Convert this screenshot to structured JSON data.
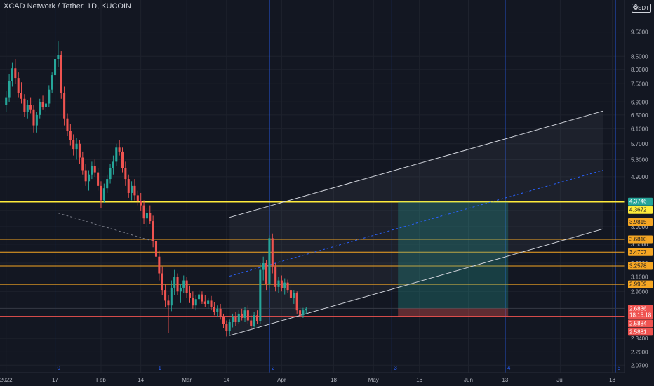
{
  "header": {
    "symbol_title": "XCAD Network / Tether, 1D, KUCOIN",
    "currency_unit": "USDT",
    "settings_glyph": "⚙"
  },
  "chart_data": {
    "type": "candlestick",
    "title": "XCAD Network / Tether, 1D, KUCOIN",
    "xlabel": "",
    "ylabel": "",
    "y_scale": "log",
    "ylim": [
      2.0,
      11.0
    ],
    "xlim": [
      "2021-12-30",
      "2022-07-22"
    ],
    "grid": true,
    "colors": {
      "up": "#26a69a",
      "down": "#ef5350",
      "background": "#131722",
      "horizontal_level": "#f5a623",
      "highlight_level": "#ffeb3b",
      "cycle_line": "#2962ff",
      "channel": "#d1d4dc"
    },
    "x_tick_labels": [
      {
        "date": "2022-01-01",
        "label": "2022"
      },
      {
        "date": "2022-01-17",
        "label": "17"
      },
      {
        "date": "2022-02-01",
        "label": "Feb"
      },
      {
        "date": "2022-02-14",
        "label": "14"
      },
      {
        "date": "2022-03-01",
        "label": "Mar"
      },
      {
        "date": "2022-03-14",
        "label": "14"
      },
      {
        "date": "2022-04-01",
        "label": "Apr"
      },
      {
        "date": "2022-04-18",
        "label": "18"
      },
      {
        "date": "2022-05-01",
        "label": "May"
      },
      {
        "date": "2022-05-16",
        "label": "16"
      },
      {
        "date": "2022-06-01",
        "label": "Jun"
      },
      {
        "date": "2022-06-13",
        "label": "13"
      },
      {
        "date": "2022-07-01",
        "label": "Jul"
      },
      {
        "date": "2022-07-18",
        "label": "18"
      }
    ],
    "y_tick_labels": [
      "9.5000",
      "8.5000",
      "8.0000",
      "7.5000",
      "6.9000",
      "6.5000",
      "6.1000",
      "5.7000",
      "5.3000",
      "4.9000",
      "4.2000",
      "3.9000",
      "3.6000",
      "3.3000",
      "3.1000",
      "2.9000",
      "2.3400",
      "2.2000",
      "2.0700"
    ],
    "price_levels": [
      {
        "label": "4.3746",
        "value": 4.3746,
        "bg": "#26a69a",
        "line": false
      },
      {
        "label": "4.3672",
        "value": 4.3672,
        "bg": "#ffeb3b",
        "line": true,
        "color": "#ffeb3b"
      },
      {
        "label": "3.9815",
        "value": 3.9815,
        "bg": "#f5a623",
        "line": true,
        "color": "#f5a623"
      },
      {
        "label": "3.6810",
        "value": 3.681,
        "bg": "#f5a623",
        "line": true,
        "color": "#f5a623"
      },
      {
        "label": "3.4707",
        "value": 3.4707,
        "bg": "#f5a623",
        "line": true,
        "color": "#f5a623"
      },
      {
        "label": "3.2578",
        "value": 3.2578,
        "bg": "#f5a623",
        "line": true,
        "color": "#f5a623"
      },
      {
        "label": "2.9959",
        "value": 2.9959,
        "bg": "#f5a623",
        "line": true,
        "color": "#f5a623"
      },
      {
        "label": "2.6836",
        "value": 2.6836,
        "bg": "#ef5350",
        "line": true,
        "color": "#363a45",
        "multiline": [
          "2.6836",
          "18:15:18"
        ]
      },
      {
        "label": "2.5884",
        "value": 2.5884,
        "bg": "#ef5350",
        "line": true,
        "color": "#ef5350"
      },
      {
        "label": "2.5881",
        "value": 2.5881,
        "bg": "#ef5350",
        "line": false
      }
    ],
    "cycle_lines": [
      {
        "date": "2022-01-17",
        "label": "0"
      },
      {
        "date": "2022-02-19",
        "label": "1"
      },
      {
        "date": "2022-03-28",
        "label": "2"
      },
      {
        "date": "2022-05-07",
        "label": "3"
      },
      {
        "date": "2022-06-13",
        "label": "4"
      },
      {
        "date": "2022-07-19",
        "label": "5"
      }
    ],
    "channel": {
      "upper": [
        [
          "2022-03-15",
          4.07
        ],
        [
          "2022-07-15",
          6.62
        ]
      ],
      "lower": [
        [
          "2022-03-15",
          2.37
        ],
        [
          "2022-07-15",
          3.86
        ]
      ],
      "mid": [
        [
          "2022-03-15",
          3.11
        ],
        [
          "2022-07-15",
          5.05
        ]
      ]
    },
    "trendline_dashed": [
      [
        "2022-01-18",
        4.15
      ],
      [
        "2022-02-20",
        3.62
      ]
    ],
    "position": {
      "start": "2022-05-09",
      "end": "2022-06-14",
      "target": 4.3672,
      "entry": 2.6836,
      "stop": 2.5884
    },
    "ohlc": [
      {
        "t": "2022-01-01",
        "o": 6.8,
        "h": 7.25,
        "l": 6.6,
        "c": 7.05
      },
      {
        "t": "2022-01-02",
        "o": 7.05,
        "h": 7.85,
        "l": 6.9,
        "c": 7.6
      },
      {
        "t": "2022-01-03",
        "o": 7.6,
        "h": 8.25,
        "l": 7.4,
        "c": 8.05
      },
      {
        "t": "2022-01-04",
        "o": 8.05,
        "h": 8.4,
        "l": 7.5,
        "c": 7.7
      },
      {
        "t": "2022-01-05",
        "o": 7.7,
        "h": 7.9,
        "l": 7.05,
        "c": 7.2
      },
      {
        "t": "2022-01-06",
        "o": 7.2,
        "h": 7.55,
        "l": 6.85,
        "c": 7.0
      },
      {
        "t": "2022-01-07",
        "o": 7.0,
        "h": 7.15,
        "l": 6.45,
        "c": 6.6
      },
      {
        "t": "2022-01-08",
        "o": 6.6,
        "h": 6.95,
        "l": 6.4,
        "c": 6.8
      },
      {
        "t": "2022-01-09",
        "o": 6.8,
        "h": 7.05,
        "l": 6.55,
        "c": 6.65
      },
      {
        "t": "2022-01-10",
        "o": 6.65,
        "h": 6.8,
        "l": 6.0,
        "c": 6.2
      },
      {
        "t": "2022-01-11",
        "o": 6.2,
        "h": 6.6,
        "l": 6.0,
        "c": 6.5
      },
      {
        "t": "2022-01-12",
        "o": 6.5,
        "h": 7.0,
        "l": 6.4,
        "c": 6.9
      },
      {
        "t": "2022-01-13",
        "o": 6.9,
        "h": 7.1,
        "l": 6.65,
        "c": 6.75
      },
      {
        "t": "2022-01-14",
        "o": 6.75,
        "h": 6.95,
        "l": 6.6,
        "c": 6.85
      },
      {
        "t": "2022-01-15",
        "o": 6.85,
        "h": 7.45,
        "l": 6.75,
        "c": 7.3
      },
      {
        "t": "2022-01-16",
        "o": 7.3,
        "h": 7.9,
        "l": 7.2,
        "c": 7.8
      },
      {
        "t": "2022-01-17",
        "o": 7.8,
        "h": 8.65,
        "l": 7.6,
        "c": 8.4
      },
      {
        "t": "2022-01-18",
        "o": 8.4,
        "h": 9.1,
        "l": 8.1,
        "c": 8.55
      },
      {
        "t": "2022-01-19",
        "o": 8.55,
        "h": 8.7,
        "l": 7.0,
        "c": 7.2
      },
      {
        "t": "2022-01-20",
        "o": 7.2,
        "h": 7.4,
        "l": 6.2,
        "c": 6.4
      },
      {
        "t": "2022-01-21",
        "o": 6.4,
        "h": 6.55,
        "l": 5.9,
        "c": 6.05
      },
      {
        "t": "2022-01-22",
        "o": 6.05,
        "h": 6.25,
        "l": 5.65,
        "c": 5.8
      },
      {
        "t": "2022-01-23",
        "o": 5.8,
        "h": 5.95,
        "l": 5.4,
        "c": 5.55
      },
      {
        "t": "2022-01-24",
        "o": 5.55,
        "h": 5.85,
        "l": 5.3,
        "c": 5.7
      },
      {
        "t": "2022-01-25",
        "o": 5.7,
        "h": 5.8,
        "l": 5.2,
        "c": 5.35
      },
      {
        "t": "2022-01-26",
        "o": 5.35,
        "h": 5.5,
        "l": 4.95,
        "c": 5.05
      },
      {
        "t": "2022-01-27",
        "o": 5.05,
        "h": 5.2,
        "l": 4.7,
        "c": 4.8
      },
      {
        "t": "2022-01-28",
        "o": 4.8,
        "h": 5.05,
        "l": 4.6,
        "c": 4.95
      },
      {
        "t": "2022-01-29",
        "o": 4.95,
        "h": 5.25,
        "l": 4.85,
        "c": 5.15
      },
      {
        "t": "2022-01-30",
        "o": 5.15,
        "h": 5.3,
        "l": 4.9,
        "c": 5.0
      },
      {
        "t": "2022-01-31",
        "o": 5.0,
        "h": 5.1,
        "l": 4.6,
        "c": 4.7
      },
      {
        "t": "2022-02-01",
        "o": 4.7,
        "h": 4.8,
        "l": 4.25,
        "c": 4.4
      },
      {
        "t": "2022-02-02",
        "o": 4.4,
        "h": 4.75,
        "l": 4.35,
        "c": 4.65
      },
      {
        "t": "2022-02-03",
        "o": 4.65,
        "h": 4.95,
        "l": 4.55,
        "c": 4.85
      },
      {
        "t": "2022-02-04",
        "o": 4.85,
        "h": 5.2,
        "l": 4.75,
        "c": 5.1
      },
      {
        "t": "2022-02-05",
        "o": 5.1,
        "h": 5.4,
        "l": 4.95,
        "c": 5.25
      },
      {
        "t": "2022-02-06",
        "o": 5.25,
        "h": 5.7,
        "l": 5.15,
        "c": 5.6
      },
      {
        "t": "2022-02-07",
        "o": 5.6,
        "h": 5.8,
        "l": 5.4,
        "c": 5.5
      },
      {
        "t": "2022-02-08",
        "o": 5.5,
        "h": 5.6,
        "l": 5.0,
        "c": 5.1
      },
      {
        "t": "2022-02-09",
        "o": 5.1,
        "h": 5.25,
        "l": 4.7,
        "c": 4.85
      },
      {
        "t": "2022-02-10",
        "o": 4.85,
        "h": 4.95,
        "l": 4.45,
        "c": 4.55
      },
      {
        "t": "2022-02-11",
        "o": 4.55,
        "h": 4.8,
        "l": 4.4,
        "c": 4.7
      },
      {
        "t": "2022-02-12",
        "o": 4.7,
        "h": 4.85,
        "l": 4.4,
        "c": 4.5
      },
      {
        "t": "2022-02-13",
        "o": 4.5,
        "h": 4.6,
        "l": 4.3,
        "c": 4.38
      },
      {
        "t": "2022-02-14",
        "o": 4.38,
        "h": 4.55,
        "l": 4.2,
        "c": 4.3
      },
      {
        "t": "2022-02-15",
        "o": 4.3,
        "h": 4.4,
        "l": 3.95,
        "c": 4.05
      },
      {
        "t": "2022-02-16",
        "o": 4.05,
        "h": 4.25,
        "l": 3.9,
        "c": 4.15
      },
      {
        "t": "2022-02-17",
        "o": 4.15,
        "h": 4.3,
        "l": 3.95,
        "c": 4.0
      },
      {
        "t": "2022-02-18",
        "o": 4.0,
        "h": 4.1,
        "l": 3.55,
        "c": 3.65
      },
      {
        "t": "2022-02-19",
        "o": 3.65,
        "h": 3.75,
        "l": 3.3,
        "c": 3.4
      },
      {
        "t": "2022-02-20",
        "o": 3.4,
        "h": 3.5,
        "l": 3.05,
        "c": 3.15
      },
      {
        "t": "2022-02-21",
        "o": 3.15,
        "h": 3.25,
        "l": 2.85,
        "c": 2.92
      },
      {
        "t": "2022-02-22",
        "o": 2.92,
        "h": 3.0,
        "l": 2.7,
        "c": 2.78
      },
      {
        "t": "2022-02-23",
        "o": 2.78,
        "h": 2.85,
        "l": 2.4,
        "c": 2.72
      },
      {
        "t": "2022-02-24",
        "o": 2.72,
        "h": 3.05,
        "l": 2.65,
        "c": 2.95
      },
      {
        "t": "2022-02-25",
        "o": 2.95,
        "h": 3.2,
        "l": 2.85,
        "c": 3.1
      },
      {
        "t": "2022-02-26",
        "o": 3.1,
        "h": 3.15,
        "l": 2.85,
        "c": 2.9
      },
      {
        "t": "2022-02-27",
        "o": 2.9,
        "h": 3.0,
        "l": 2.75,
        "c": 2.95
      },
      {
        "t": "2022-02-28",
        "o": 2.95,
        "h": 3.12,
        "l": 2.88,
        "c": 3.05
      },
      {
        "t": "2022-03-01",
        "o": 3.05,
        "h": 3.1,
        "l": 2.82,
        "c": 2.88
      },
      {
        "t": "2022-03-02",
        "o": 2.88,
        "h": 2.98,
        "l": 2.75,
        "c": 2.82
      },
      {
        "t": "2022-03-03",
        "o": 2.82,
        "h": 2.9,
        "l": 2.68,
        "c": 2.72
      },
      {
        "t": "2022-03-04",
        "o": 2.72,
        "h": 2.85,
        "l": 2.66,
        "c": 2.8
      },
      {
        "t": "2022-03-05",
        "o": 2.8,
        "h": 2.92,
        "l": 2.74,
        "c": 2.86
      },
      {
        "t": "2022-03-06",
        "o": 2.86,
        "h": 2.9,
        "l": 2.74,
        "c": 2.77
      },
      {
        "t": "2022-03-07",
        "o": 2.77,
        "h": 2.85,
        "l": 2.7,
        "c": 2.74
      },
      {
        "t": "2022-03-08",
        "o": 2.74,
        "h": 2.82,
        "l": 2.68,
        "c": 2.78
      },
      {
        "t": "2022-03-09",
        "o": 2.78,
        "h": 2.84,
        "l": 2.66,
        "c": 2.7
      },
      {
        "t": "2022-03-10",
        "o": 2.7,
        "h": 2.76,
        "l": 2.6,
        "c": 2.64
      },
      {
        "t": "2022-03-11",
        "o": 2.64,
        "h": 2.72,
        "l": 2.58,
        "c": 2.68
      },
      {
        "t": "2022-03-12",
        "o": 2.68,
        "h": 2.74,
        "l": 2.55,
        "c": 2.58
      },
      {
        "t": "2022-03-13",
        "o": 2.58,
        "h": 2.62,
        "l": 2.45,
        "c": 2.5
      },
      {
        "t": "2022-03-14",
        "o": 2.5,
        "h": 2.54,
        "l": 2.36,
        "c": 2.42
      },
      {
        "t": "2022-03-15",
        "o": 2.42,
        "h": 2.55,
        "l": 2.38,
        "c": 2.52
      },
      {
        "t": "2022-03-16",
        "o": 2.52,
        "h": 2.62,
        "l": 2.46,
        "c": 2.58
      },
      {
        "t": "2022-03-17",
        "o": 2.58,
        "h": 2.64,
        "l": 2.48,
        "c": 2.52
      },
      {
        "t": "2022-03-18",
        "o": 2.52,
        "h": 2.66,
        "l": 2.5,
        "c": 2.62
      },
      {
        "t": "2022-03-19",
        "o": 2.62,
        "h": 2.68,
        "l": 2.54,
        "c": 2.57
      },
      {
        "t": "2022-03-20",
        "o": 2.57,
        "h": 2.7,
        "l": 2.52,
        "c": 2.66
      },
      {
        "t": "2022-03-21",
        "o": 2.66,
        "h": 2.72,
        "l": 2.5,
        "c": 2.54
      },
      {
        "t": "2022-03-22",
        "o": 2.54,
        "h": 2.6,
        "l": 2.44,
        "c": 2.48
      },
      {
        "t": "2022-03-23",
        "o": 2.48,
        "h": 2.64,
        "l": 2.46,
        "c": 2.6
      },
      {
        "t": "2022-03-24",
        "o": 2.6,
        "h": 2.66,
        "l": 2.5,
        "c": 2.53
      },
      {
        "t": "2022-03-25",
        "o": 2.53,
        "h": 3.3,
        "l": 2.5,
        "c": 3.2
      },
      {
        "t": "2022-03-26",
        "o": 3.2,
        "h": 3.4,
        "l": 3.05,
        "c": 3.3
      },
      {
        "t": "2022-03-27",
        "o": 3.3,
        "h": 3.35,
        "l": 2.92,
        "c": 3.0
      },
      {
        "t": "2022-03-28",
        "o": 3.0,
        "h": 3.75,
        "l": 2.95,
        "c": 3.7
      },
      {
        "t": "2022-03-29",
        "o": 3.7,
        "h": 3.78,
        "l": 3.15,
        "c": 3.25
      },
      {
        "t": "2022-03-30",
        "o": 3.25,
        "h": 3.3,
        "l": 2.9,
        "c": 2.96
      },
      {
        "t": "2022-03-31",
        "o": 2.96,
        "h": 3.1,
        "l": 2.88,
        "c": 3.05
      },
      {
        "t": "2022-04-01",
        "o": 3.05,
        "h": 3.12,
        "l": 2.9,
        "c": 2.94
      },
      {
        "t": "2022-04-02",
        "o": 2.94,
        "h": 3.08,
        "l": 2.86,
        "c": 3.02
      },
      {
        "t": "2022-04-03",
        "o": 3.02,
        "h": 3.06,
        "l": 2.88,
        "c": 2.92
      },
      {
        "t": "2022-04-04",
        "o": 2.92,
        "h": 2.98,
        "l": 2.78,
        "c": 2.82
      },
      {
        "t": "2022-04-05",
        "o": 2.82,
        "h": 2.92,
        "l": 2.74,
        "c": 2.88
      },
      {
        "t": "2022-04-06",
        "o": 2.88,
        "h": 2.9,
        "l": 2.62,
        "c": 2.66
      },
      {
        "t": "2022-04-07",
        "o": 2.66,
        "h": 2.7,
        "l": 2.56,
        "c": 2.6
      },
      {
        "t": "2022-04-08",
        "o": 2.6,
        "h": 2.69,
        "l": 2.57,
        "c": 2.66
      },
      {
        "t": "2022-04-09",
        "o": 2.66,
        "h": 2.7,
        "l": 2.62,
        "c": 2.68
      }
    ]
  }
}
